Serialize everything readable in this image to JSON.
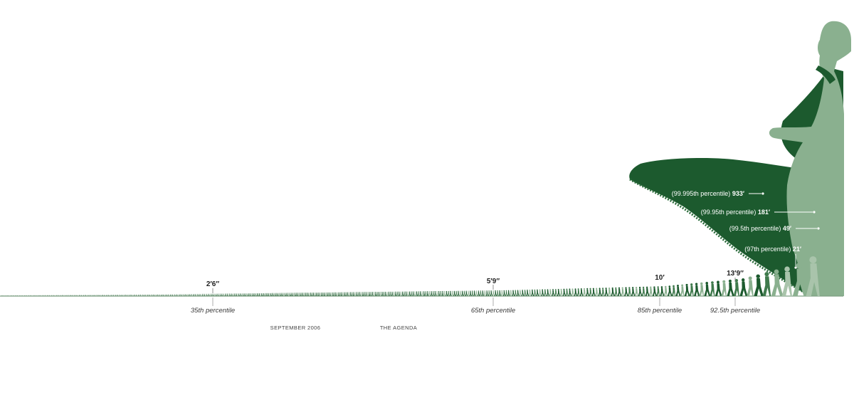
{
  "colors": {
    "dark_green": "#1c5a2e",
    "mid_green": "#3f7a4c",
    "light_green": "#8ab08f",
    "pale_green": "#a9c4ab",
    "baseline": "#7f9f84",
    "callout_line": "#ffffff"
  },
  "height_labels": [
    {
      "id": "h-2ft6",
      "text": "2′6″"
    },
    {
      "id": "h-5ft9",
      "text": "5′9″"
    },
    {
      "id": "h-10ft",
      "text": "10′"
    },
    {
      "id": "h-13ft9",
      "text": "13′9″"
    }
  ],
  "percentile_ticks": [
    {
      "id": "p35",
      "text": "35th percentile"
    },
    {
      "id": "p65",
      "text": "65th percentile"
    },
    {
      "id": "p85",
      "text": "85th percentile"
    },
    {
      "id": "p925",
      "text": "92.5th percentile"
    }
  ],
  "callouts": [
    {
      "id": "c99995",
      "prefix": "(99.995th percentile) ",
      "value": "933′"
    },
    {
      "id": "c9995",
      "prefix": "(99.95th percentile) ",
      "value": "181′"
    },
    {
      "id": "c995",
      "prefix": "(99.5th percentile) ",
      "value": "49′"
    },
    {
      "id": "c97",
      "prefix": "(97th percentile) ",
      "value": "21′"
    }
  ],
  "footer": {
    "date": "SEPTEMBER 2006",
    "section": "THE AGENDA"
  }
}
